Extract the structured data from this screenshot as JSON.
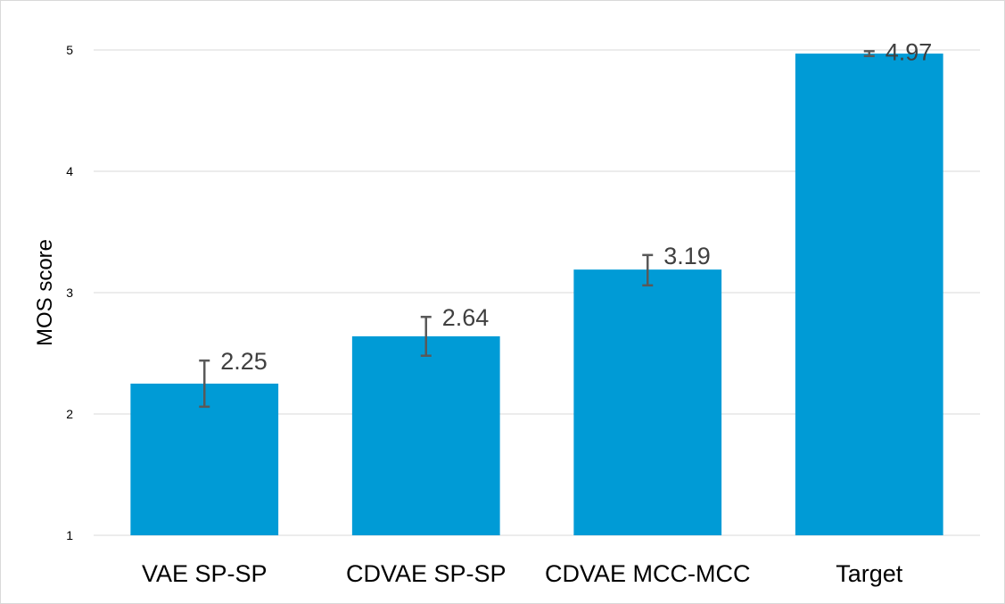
{
  "chart_data": {
    "type": "bar",
    "title": "",
    "xlabel": "",
    "ylabel": "MOS score",
    "ylim": [
      1,
      5
    ],
    "yticks": [
      1,
      2,
      3,
      4,
      5
    ],
    "grid": true,
    "legend": "none",
    "categories": [
      "VAE SP-SP",
      "CDVAE SP-SP",
      "CDVAE MCC-MCC",
      "Target"
    ],
    "values": [
      2.25,
      2.64,
      3.19,
      4.97
    ],
    "data_labels": [
      "2.25",
      "2.64",
      "3.19",
      "4.97"
    ],
    "error_bars": [
      {
        "low": 2.06,
        "high": 2.44
      },
      {
        "low": 2.48,
        "high": 2.8
      },
      {
        "low": 3.06,
        "high": 3.31
      },
      {
        "low": 4.95,
        "high": 4.99
      }
    ],
    "colors": {
      "bar": "#009bd6",
      "error_bar": "#595959",
      "grid": "#d9d9d9",
      "data_label": "#404040"
    }
  }
}
